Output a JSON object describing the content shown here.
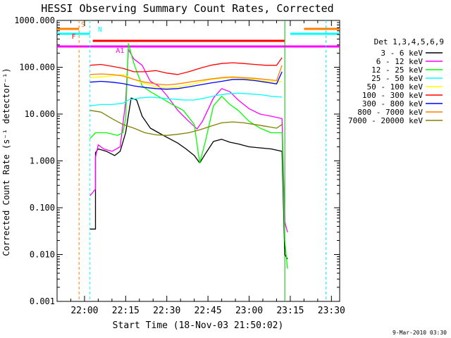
{
  "chart_data": {
    "type": "line",
    "title": "HESSI Observing Summary Count Rates, Corrected",
    "xlabel": "Start Time (18-Nov-03 21:50:02)",
    "ylabel": "Corrected Count Rate (s⁻¹ detector⁻¹)",
    "y_scale": "log",
    "ylim": [
      0.001,
      1000
    ],
    "xlim": [
      "21:50",
      "23:33"
    ],
    "x_ticks": [
      "22:00",
      "22:15",
      "22:30",
      "22:45",
      "23:00",
      "23:15",
      "23:30"
    ],
    "y_ticks": [
      "1000.000",
      "100.000",
      "10.000",
      "1.000",
      "0.100",
      "0.010",
      "0.001"
    ],
    "legend_title": "Det 1,3,4,5,6,9",
    "legend_position": "right",
    "timestamp": "9-Mar-2010 03:30",
    "flags": [
      {
        "label": "S",
        "color": "#ff8000",
        "start": "21:50",
        "end": "21:58",
        "start2": "23:20",
        "end2": "23:33"
      },
      {
        "label": "N",
        "color": "#00ffff",
        "start": "21:50",
        "end": "22:02",
        "start2": "23:15",
        "end2": "23:33"
      },
      {
        "label": "F",
        "color": "#ff0000",
        "start": "22:03",
        "end": "23:13"
      },
      {
        "label": "A1",
        "color": "#ff00ff",
        "start": "21:50",
        "end": "23:33"
      }
    ],
    "vertical_lines": [
      {
        "time": "21:58",
        "color": "#ff8000"
      },
      {
        "time": "22:02",
        "color": "#00ffff"
      },
      {
        "time": "23:13",
        "color": "#00c000"
      },
      {
        "time": "23:28",
        "color": "#00ffff"
      }
    ],
    "series": [
      {
        "name": "3 - 6 keV",
        "color": "#000000",
        "points": [
          [
            "22:02",
            0.035
          ],
          [
            "22:04",
            0.035
          ],
          [
            "22:04",
            1.5
          ],
          [
            "22:05",
            1.8
          ],
          [
            "22:08",
            1.6
          ],
          [
            "22:11",
            1.3
          ],
          [
            "22:13",
            1.6
          ],
          [
            "22:15",
            4
          ],
          [
            "22:17",
            22
          ],
          [
            "22:19",
            20
          ],
          [
            "22:21",
            9
          ],
          [
            "22:24",
            5
          ],
          [
            "22:27",
            4
          ],
          [
            "22:30",
            3.2
          ],
          [
            "22:34",
            2.4
          ],
          [
            "22:37",
            1.8
          ],
          [
            "22:40",
            1.3
          ],
          [
            "22:42",
            0.9
          ],
          [
            "22:44",
            1.4
          ],
          [
            "22:47",
            2.6
          ],
          [
            "22:50",
            2.9
          ],
          [
            "22:53",
            2.5
          ],
          [
            "22:56",
            2.3
          ],
          [
            "23:00",
            2
          ],
          [
            "23:04",
            1.9
          ],
          [
            "23:08",
            1.8
          ],
          [
            "23:12",
            1.6
          ],
          [
            "23:13",
            0.01
          ],
          [
            "23:14",
            0.008
          ]
        ]
      },
      {
        "name": "6 - 12 keV",
        "color": "#ff00ff",
        "points": [
          [
            "22:02",
            0.18
          ],
          [
            "22:04",
            0.25
          ],
          [
            "22:04",
            1.2
          ],
          [
            "22:05",
            2.2
          ],
          [
            "22:07",
            1.8
          ],
          [
            "22:10",
            1.6
          ],
          [
            "22:13",
            2
          ],
          [
            "22:15",
            18
          ],
          [
            "22:16",
            240
          ],
          [
            "22:18",
            150
          ],
          [
            "22:21",
            110
          ],
          [
            "22:24",
            50
          ],
          [
            "22:27",
            40
          ],
          [
            "22:30",
            25
          ],
          [
            "22:34",
            12
          ],
          [
            "22:38",
            7
          ],
          [
            "22:41",
            4.8
          ],
          [
            "22:43",
            7
          ],
          [
            "22:47",
            22
          ],
          [
            "22:50",
            35
          ],
          [
            "22:53",
            30
          ],
          [
            "22:56",
            20
          ],
          [
            "23:00",
            13
          ],
          [
            "23:04",
            10
          ],
          [
            "23:08",
            9
          ],
          [
            "23:12",
            8
          ],
          [
            "23:13",
            0.05
          ],
          [
            "23:14",
            0.03
          ]
        ]
      },
      {
        "name": "12 - 25 keV",
        "color": "#00ff00",
        "points": [
          [
            "22:02",
            3
          ],
          [
            "22:04",
            4
          ],
          [
            "22:08",
            4
          ],
          [
            "22:12",
            3.5
          ],
          [
            "22:14",
            4
          ],
          [
            "22:15",
            8
          ],
          [
            "22:16",
            320
          ],
          [
            "22:18",
            120
          ],
          [
            "22:21",
            40
          ],
          [
            "22:24",
            30
          ],
          [
            "22:28",
            22
          ],
          [
            "22:32",
            16
          ],
          [
            "22:36",
            12
          ],
          [
            "22:40",
            6
          ],
          [
            "22:42",
            0.9
          ],
          [
            "22:44",
            2.5
          ],
          [
            "22:47",
            15
          ],
          [
            "22:50",
            24
          ],
          [
            "22:53",
            16
          ],
          [
            "22:56",
            12
          ],
          [
            "23:00",
            7
          ],
          [
            "23:04",
            5
          ],
          [
            "23:08",
            4
          ],
          [
            "23:12",
            4
          ],
          [
            "23:13",
            0.02
          ],
          [
            "23:14",
            0.005
          ]
        ]
      },
      {
        "name": "25 - 50 keV",
        "color": "#00ffff",
        "points": [
          [
            "22:02",
            15
          ],
          [
            "22:06",
            16
          ],
          [
            "22:10",
            16
          ],
          [
            "22:14",
            17
          ],
          [
            "22:16",
            20
          ],
          [
            "22:20",
            22
          ],
          [
            "22:24",
            23
          ],
          [
            "22:28",
            22
          ],
          [
            "22:32",
            21
          ],
          [
            "22:36",
            20
          ],
          [
            "22:40",
            20
          ],
          [
            "22:44",
            22
          ],
          [
            "22:48",
            25
          ],
          [
            "22:52",
            27
          ],
          [
            "22:56",
            28
          ],
          [
            "23:00",
            27
          ],
          [
            "23:04",
            26
          ],
          [
            "23:08",
            24
          ],
          [
            "23:12",
            23
          ]
        ]
      },
      {
        "name": "50 - 100 keV",
        "color": "#ffff00",
        "points": [
          [
            "22:02",
            60
          ],
          [
            "22:06",
            62
          ],
          [
            "22:10",
            65
          ],
          [
            "22:14",
            70
          ],
          [
            "22:18",
            55
          ],
          [
            "22:22",
            45
          ],
          [
            "22:26",
            38
          ],
          [
            "22:30",
            36
          ],
          [
            "22:34",
            38
          ],
          [
            "22:38",
            42
          ],
          [
            "22:42",
            48
          ],
          [
            "22:46",
            55
          ],
          [
            "22:50",
            58
          ],
          [
            "22:54",
            60
          ],
          [
            "22:58",
            58
          ],
          [
            "23:02",
            55
          ],
          [
            "23:06",
            50
          ],
          [
            "23:10",
            48
          ],
          [
            "23:12",
            50
          ]
        ]
      },
      {
        "name": "100 - 300 keV",
        "color": "#ff0000",
        "points": [
          [
            "22:02",
            110
          ],
          [
            "22:06",
            115
          ],
          [
            "22:10",
            105
          ],
          [
            "22:14",
            95
          ],
          [
            "22:18",
            80
          ],
          [
            "22:22",
            80
          ],
          [
            "22:26",
            85
          ],
          [
            "22:30",
            75
          ],
          [
            "22:34",
            70
          ],
          [
            "22:38",
            80
          ],
          [
            "22:42",
            95
          ],
          [
            "22:46",
            110
          ],
          [
            "22:50",
            120
          ],
          [
            "22:54",
            125
          ],
          [
            "22:58",
            120
          ],
          [
            "23:02",
            115
          ],
          [
            "23:06",
            110
          ],
          [
            "23:10",
            110
          ],
          [
            "23:12",
            160
          ]
        ]
      },
      {
        "name": "300 - 800 keV",
        "color": "#0000ff",
        "points": [
          [
            "22:02",
            48
          ],
          [
            "22:06",
            50
          ],
          [
            "22:10",
            48
          ],
          [
            "22:14",
            45
          ],
          [
            "22:18",
            40
          ],
          [
            "22:22",
            37
          ],
          [
            "22:26",
            35
          ],
          [
            "22:30",
            34
          ],
          [
            "22:34",
            35
          ],
          [
            "22:38",
            38
          ],
          [
            "22:42",
            42
          ],
          [
            "22:46",
            46
          ],
          [
            "22:50",
            50
          ],
          [
            "22:54",
            55
          ],
          [
            "22:58",
            55
          ],
          [
            "23:02",
            52
          ],
          [
            "23:06",
            48
          ],
          [
            "23:10",
            44
          ],
          [
            "23:12",
            80
          ]
        ]
      },
      {
        "name": "800 - 7000 keV",
        "color": "#ff8000",
        "points": [
          [
            "22:02",
            70
          ],
          [
            "22:06",
            72
          ],
          [
            "22:10",
            70
          ],
          [
            "22:14",
            65
          ],
          [
            "22:18",
            55
          ],
          [
            "22:22",
            48
          ],
          [
            "22:26",
            44
          ],
          [
            "22:30",
            42
          ],
          [
            "22:34",
            44
          ],
          [
            "22:38",
            48
          ],
          [
            "22:42",
            52
          ],
          [
            "22:46",
            56
          ],
          [
            "22:50",
            60
          ],
          [
            "22:54",
            62
          ],
          [
            "22:58",
            60
          ],
          [
            "23:02",
            58
          ],
          [
            "23:06",
            55
          ],
          [
            "23:10",
            52
          ],
          [
            "23:12",
            110
          ]
        ]
      },
      {
        "name": "7000 - 20000 keV",
        "color": "#808000",
        "points": [
          [
            "22:02",
            12
          ],
          [
            "22:06",
            11
          ],
          [
            "22:10",
            8
          ],
          [
            "22:14",
            6
          ],
          [
            "22:18",
            5
          ],
          [
            "22:22",
            4
          ],
          [
            "22:26",
            3.6
          ],
          [
            "22:30",
            3.5
          ],
          [
            "22:34",
            3.7
          ],
          [
            "22:38",
            4
          ],
          [
            "22:42",
            4.6
          ],
          [
            "22:46",
            5.5
          ],
          [
            "22:50",
            6.5
          ],
          [
            "22:54",
            6.8
          ],
          [
            "22:58",
            6.5
          ],
          [
            "23:02",
            6
          ],
          [
            "23:06",
            5.5
          ],
          [
            "23:10",
            5
          ],
          [
            "23:12",
            6
          ]
        ]
      }
    ]
  }
}
